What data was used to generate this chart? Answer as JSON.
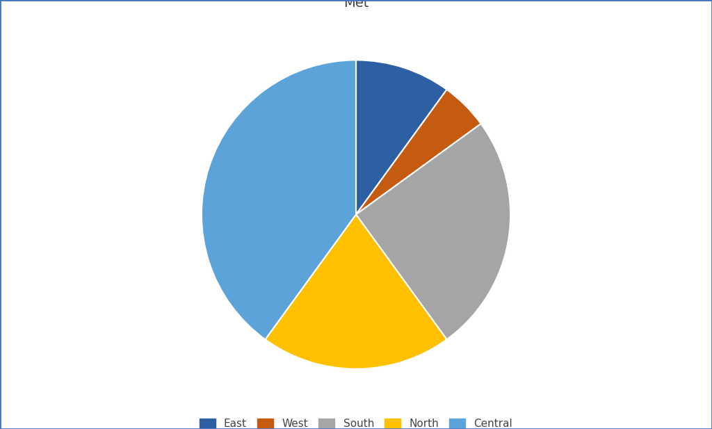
{
  "title": "Met",
  "labels": [
    "East",
    "West",
    "South",
    "North",
    "Central"
  ],
  "values": [
    10,
    5,
    25,
    20,
    40
  ],
  "colors": [
    "#2E5FA3",
    "#C55A11",
    "#A5A5A5",
    "#FFC000",
    "#5BA3D9"
  ],
  "startangle": 90,
  "title_fontsize": 14,
  "legend_fontsize": 11,
  "background_color": "#FFFFFF",
  "border_color": "#4472C4",
  "border_linewidth": 2
}
